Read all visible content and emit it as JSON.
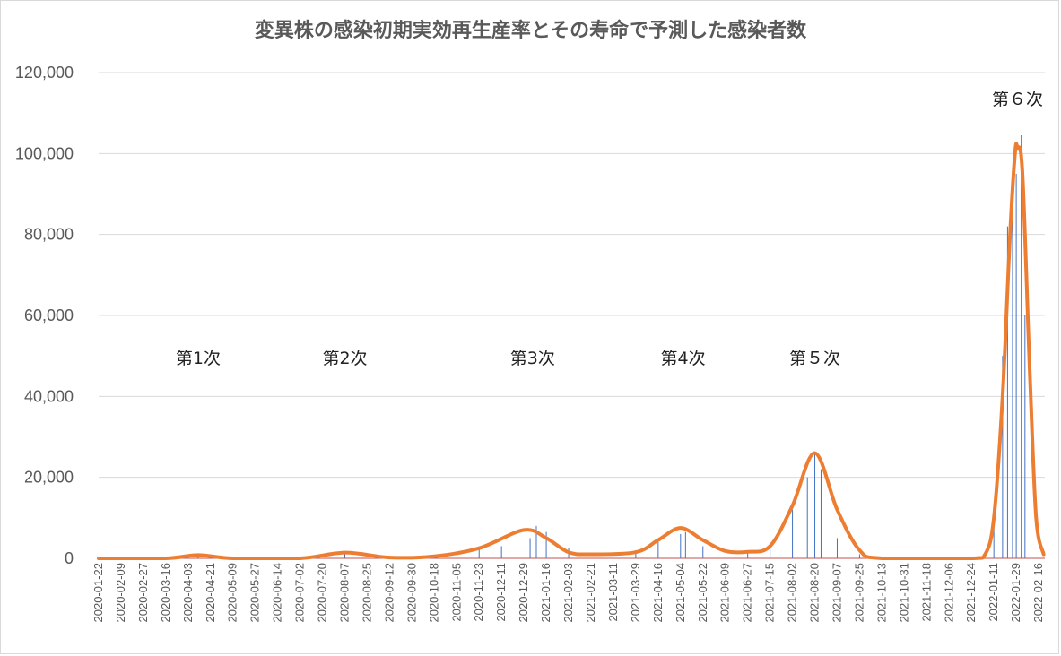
{
  "chart_data": {
    "type": "bar",
    "title": "変異株の感染初期実効再生産率とその寿命で予測した感染者数",
    "xlabel": "",
    "ylabel": "",
    "ylim": [
      0,
      120000
    ],
    "grid": true,
    "y_ticks": [
      "0",
      "20,000",
      "40,000",
      "60,000",
      "80,000",
      "100,000",
      "120,000"
    ],
    "x_ticks": [
      "2020-01-22",
      "2020-02-09",
      "2020-02-27",
      "2020-03-16",
      "2020-04-03",
      "2020-04-21",
      "2020-05-09",
      "2020-05-27",
      "2020-06-14",
      "2020-07-02",
      "2020-07-20",
      "2020-08-07",
      "2020-08-25",
      "2020-09-12",
      "2020-09-30",
      "2020-10-18",
      "2020-11-05",
      "2020-11-23",
      "2020-12-11",
      "2020-12-29",
      "2021-01-16",
      "2021-02-03",
      "2021-02-21",
      "2021-03-11",
      "2021-03-29",
      "2021-04-16",
      "2021-05-04",
      "2021-05-22",
      "2021-06-09",
      "2021-06-27",
      "2021-07-15",
      "2021-08-02",
      "2021-08-20",
      "2021-09-07",
      "2021-09-25",
      "2021-10-13",
      "2021-10-31",
      "2021-11-18",
      "2021-12-06",
      "2021-12-24",
      "2022-01-11",
      "2022-01-29",
      "2022-02-16"
    ],
    "series": [
      {
        "kind": "bars",
        "color": "#4472c4",
        "x": [
          "2020-04-11",
          "2020-08-07",
          "2020-10-18",
          "2020-11-23",
          "2020-12-11",
          "2021-01-03",
          "2021-01-08",
          "2021-01-16",
          "2021-02-03",
          "2021-03-29",
          "2021-04-16",
          "2021-05-04",
          "2021-05-08",
          "2021-05-22",
          "2021-06-27",
          "2021-07-15",
          "2021-08-02",
          "2021-08-14",
          "2021-08-20",
          "2021-08-25",
          "2021-09-07",
          "2021-09-25",
          "2022-01-11",
          "2022-01-18",
          "2022-01-22",
          "2022-01-26",
          "2022-01-29",
          "2022-02-02",
          "2022-02-05"
        ],
        "values": [
          700,
          1500,
          600,
          2300,
          3000,
          5000,
          8000,
          6500,
          2500,
          2000,
          4000,
          6000,
          6500,
          3000,
          1500,
          4000,
          12000,
          20000,
          26000,
          22000,
          5000,
          1000,
          9000,
          50000,
          82000,
          85000,
          95000,
          104500,
          60000
        ]
      },
      {
        "kind": "line",
        "color": "#ed7d31",
        "x": [
          "2020-01-22",
          "2020-03-16",
          "2020-04-11",
          "2020-05-09",
          "2020-07-02",
          "2020-08-07",
          "2020-09-12",
          "2020-10-18",
          "2020-11-23",
          "2020-12-29",
          "2021-01-16",
          "2021-02-03",
          "2021-02-21",
          "2021-03-29",
          "2021-04-16",
          "2021-05-04",
          "2021-05-22",
          "2021-06-09",
          "2021-06-27",
          "2021-07-15",
          "2021-08-02",
          "2021-08-20",
          "2021-09-07",
          "2021-09-25",
          "2021-10-13",
          "2021-12-24",
          "2022-01-04",
          "2022-01-11",
          "2022-01-18",
          "2022-01-24",
          "2022-01-28",
          "2022-01-30",
          "2022-02-03",
          "2022-02-09",
          "2022-02-14",
          "2022-02-20"
        ],
        "values": [
          0,
          0,
          800,
          0,
          0,
          1400,
          200,
          500,
          2500,
          7000,
          5000,
          1500,
          1000,
          1500,
          4500,
          7500,
          4500,
          1800,
          1600,
          3000,
          13000,
          26000,
          12000,
          2000,
          0,
          0,
          1000,
          10000,
          40000,
          80000,
          100000,
          101500,
          95000,
          45000,
          10000,
          1000
        ]
      }
    ],
    "annotations": [
      {
        "label": "第1次",
        "x": "2020-04-11",
        "y": 48000
      },
      {
        "label": "第2次",
        "x": "2020-08-07",
        "y": 48000
      },
      {
        "label": "第3次",
        "x": "2021-01-05",
        "y": 48000
      },
      {
        "label": "第4次",
        "x": "2021-05-06",
        "y": 48000
      },
      {
        "label": "第５次",
        "x": "2021-08-20",
        "y": 48000
      },
      {
        "label": "第６次",
        "x": "2022-01-30",
        "y": 112000
      }
    ]
  }
}
